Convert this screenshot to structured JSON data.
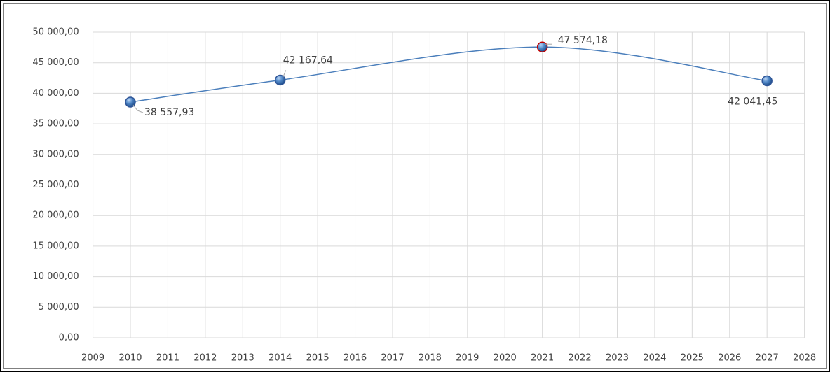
{
  "chart_data": {
    "type": "line",
    "x": [
      2010,
      2014,
      2021,
      2027
    ],
    "series": [
      {
        "color": "#4a7ebb",
        "values": [
          38557.93,
          42167.64,
          47574.18,
          42041.45
        ],
        "value_labels": [
          "38 557,93",
          "42 167,64",
          "47 574,18",
          "42 041,45"
        ],
        "point_edge_colors": [
          "#2f5597",
          "#2f5597",
          "#c00000",
          "#2f5597"
        ]
      }
    ],
    "xlim": [
      2009,
      2028
    ],
    "xticks": [
      2009,
      2010,
      2011,
      2012,
      2013,
      2014,
      2015,
      2016,
      2017,
      2018,
      2019,
      2020,
      2021,
      2022,
      2023,
      2024,
      2025,
      2026,
      2027,
      2028
    ],
    "ylim": [
      0,
      50000
    ],
    "yticks": [
      {
        "value": 0,
        "label": "0,00"
      },
      {
        "value": 5000,
        "label": "5 000,00"
      },
      {
        "value": 10000,
        "label": "10 000,00"
      },
      {
        "value": 15000,
        "label": "15 000,00"
      },
      {
        "value": 20000,
        "label": "20 000,00"
      },
      {
        "value": 25000,
        "label": "25 000,00"
      },
      {
        "value": 30000,
        "label": "30 000,00"
      },
      {
        "value": 35000,
        "label": "35 000,00"
      },
      {
        "value": 40000,
        "label": "40 000,00"
      },
      {
        "value": 45000,
        "label": "45 000,00"
      },
      {
        "value": 50000,
        "label": "50 000,00"
      }
    ],
    "grid": true,
    "smooth": true
  }
}
